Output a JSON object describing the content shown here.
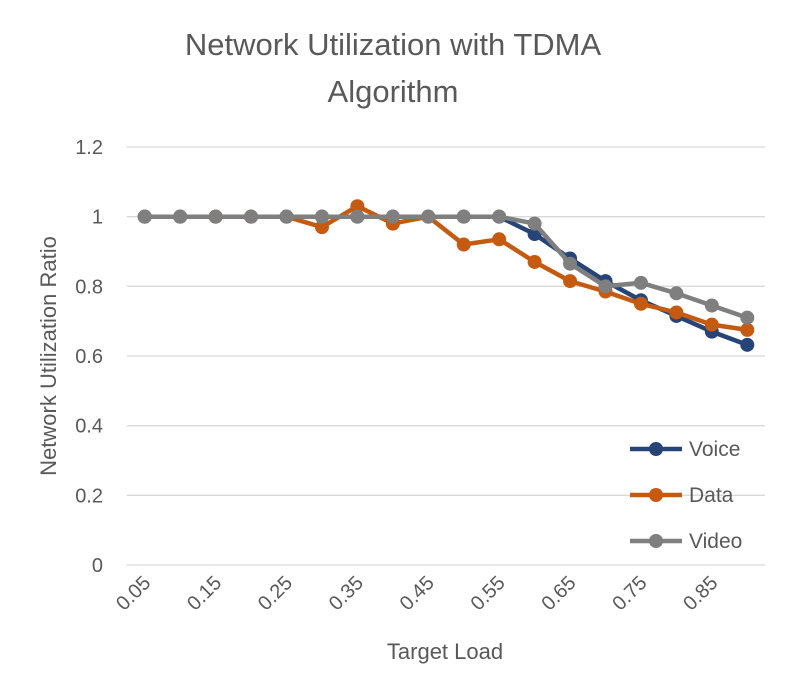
{
  "chart_data": {
    "type": "line",
    "title_lines": [
      "Network Utilization with TDMA",
      "Algorithm"
    ],
    "xlabel": "Target Load",
    "ylabel": "Network Utilization Ratio",
    "x": [
      0.05,
      0.1,
      0.15,
      0.2,
      0.25,
      0.3,
      0.35,
      0.4,
      0.45,
      0.5,
      0.55,
      0.6,
      0.65,
      0.7,
      0.75,
      0.8,
      0.85,
      0.9
    ],
    "x_tick_labels": [
      "0.05",
      "0.15",
      "0.25",
      "0.35",
      "0.45",
      "0.55",
      "0.65",
      "0.75",
      "0.85"
    ],
    "y_tick_labels": [
      "0",
      "0.2",
      "0.4",
      "0.6",
      "0.8",
      "1",
      "1.2"
    ],
    "ylim": [
      0,
      1.2
    ],
    "grid": true,
    "legend_position": "bottom-right",
    "series": [
      {
        "name": "Voice",
        "color": "#264478",
        "values": [
          1,
          1,
          1,
          1,
          1,
          1,
          1,
          1,
          1,
          1,
          1,
          0.95,
          0.88,
          0.815,
          0.76,
          0.715,
          0.67,
          0.632
        ]
      },
      {
        "name": "Data",
        "color": "#C55A11",
        "values": [
          1,
          1,
          1,
          1,
          1,
          0.97,
          1.03,
          0.98,
          1,
          0.92,
          0.935,
          0.87,
          0.815,
          0.785,
          0.75,
          0.725,
          0.69,
          0.675
        ]
      },
      {
        "name": "Video",
        "color": "#7F7F7F",
        "values": [
          1,
          1,
          1,
          1,
          1,
          1,
          1,
          1,
          1,
          1,
          1,
          0.98,
          0.865,
          0.8,
          0.81,
          0.78,
          0.745,
          0.71
        ]
      }
    ]
  }
}
